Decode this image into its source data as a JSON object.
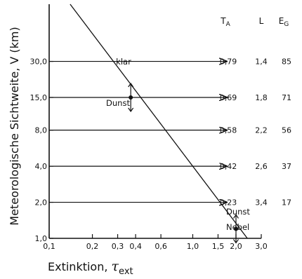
{
  "chart_data": {
    "type": "line",
    "xlabel": "Extinktion, τext",
    "xlabel_main": "Extinktion, ",
    "xlabel_tau": "τ",
    "xlabel_sub": "ext",
    "ylabel": "Meteorologische Sichtweite, V (km)",
    "x_scale": "log",
    "y_scale": "log",
    "xlim": [
      0.1,
      3.0
    ],
    "ylim": [
      1.0,
      90.0
    ],
    "x_ticks": [
      {
        "value": 0.1,
        "label": "0,1"
      },
      {
        "value": 0.2,
        "label": "0,2"
      },
      {
        "value": 0.3,
        "label": "0,3"
      },
      {
        "value": 0.4,
        "label": "0,4"
      },
      {
        "value": 0.6,
        "label": "0,6"
      },
      {
        "value": 1.0,
        "label": "1,0"
      },
      {
        "value": 1.5,
        "label": "1,5"
      },
      {
        "value": 2.0,
        "label": "2,0"
      },
      {
        "value": 3.0,
        "label": "3,0"
      }
    ],
    "y_ticks": [
      {
        "value": 1.0,
        "label": "1,0"
      },
      {
        "value": 2.0,
        "label": "2,0"
      },
      {
        "value": 4.0,
        "label": "4,0"
      },
      {
        "value": 8.0,
        "label": "8,0"
      },
      {
        "value": 15.0,
        "label": "15,0"
      },
      {
        "value": 30.0,
        "label": "30,0"
      }
    ],
    "line": {
      "x": [
        0.14,
        2.4
      ],
      "y": [
        90.0,
        1.0
      ]
    },
    "points": [
      {
        "x": 0.37,
        "y": 15.0
      },
      {
        "x": 2.0,
        "y": 1.2
      }
    ],
    "arrow_levels": [
      30.0,
      15.0,
      8.0,
      4.0,
      2.0
    ],
    "arrow_end_x": 1.72,
    "table": {
      "columns": [
        "TA",
        "L",
        "EG"
      ],
      "col_main": [
        "T",
        "L",
        "E"
      ],
      "col_sub": [
        "A",
        "",
        "G"
      ],
      "rows": [
        {
          "y": 30.0,
          "TA": "0,79",
          "L": "1,4",
          "EG": "85"
        },
        {
          "y": 15.0,
          "TA": "0,69",
          "L": "1,8",
          "EG": "71"
        },
        {
          "y": 8.0,
          "TA": "0,58",
          "L": "2,2",
          "EG": "56"
        },
        {
          "y": 4.0,
          "TA": "0,42",
          "L": "2,6",
          "EG": "37"
        },
        {
          "y": 2.0,
          "TA": "0,23",
          "L": "3,4",
          "EG": "17"
        }
      ]
    },
    "annotations": {
      "klar": "klar",
      "dunst_upper": "Dunst",
      "dunst_lower": "Dunst",
      "nebel": "Nebel"
    }
  }
}
